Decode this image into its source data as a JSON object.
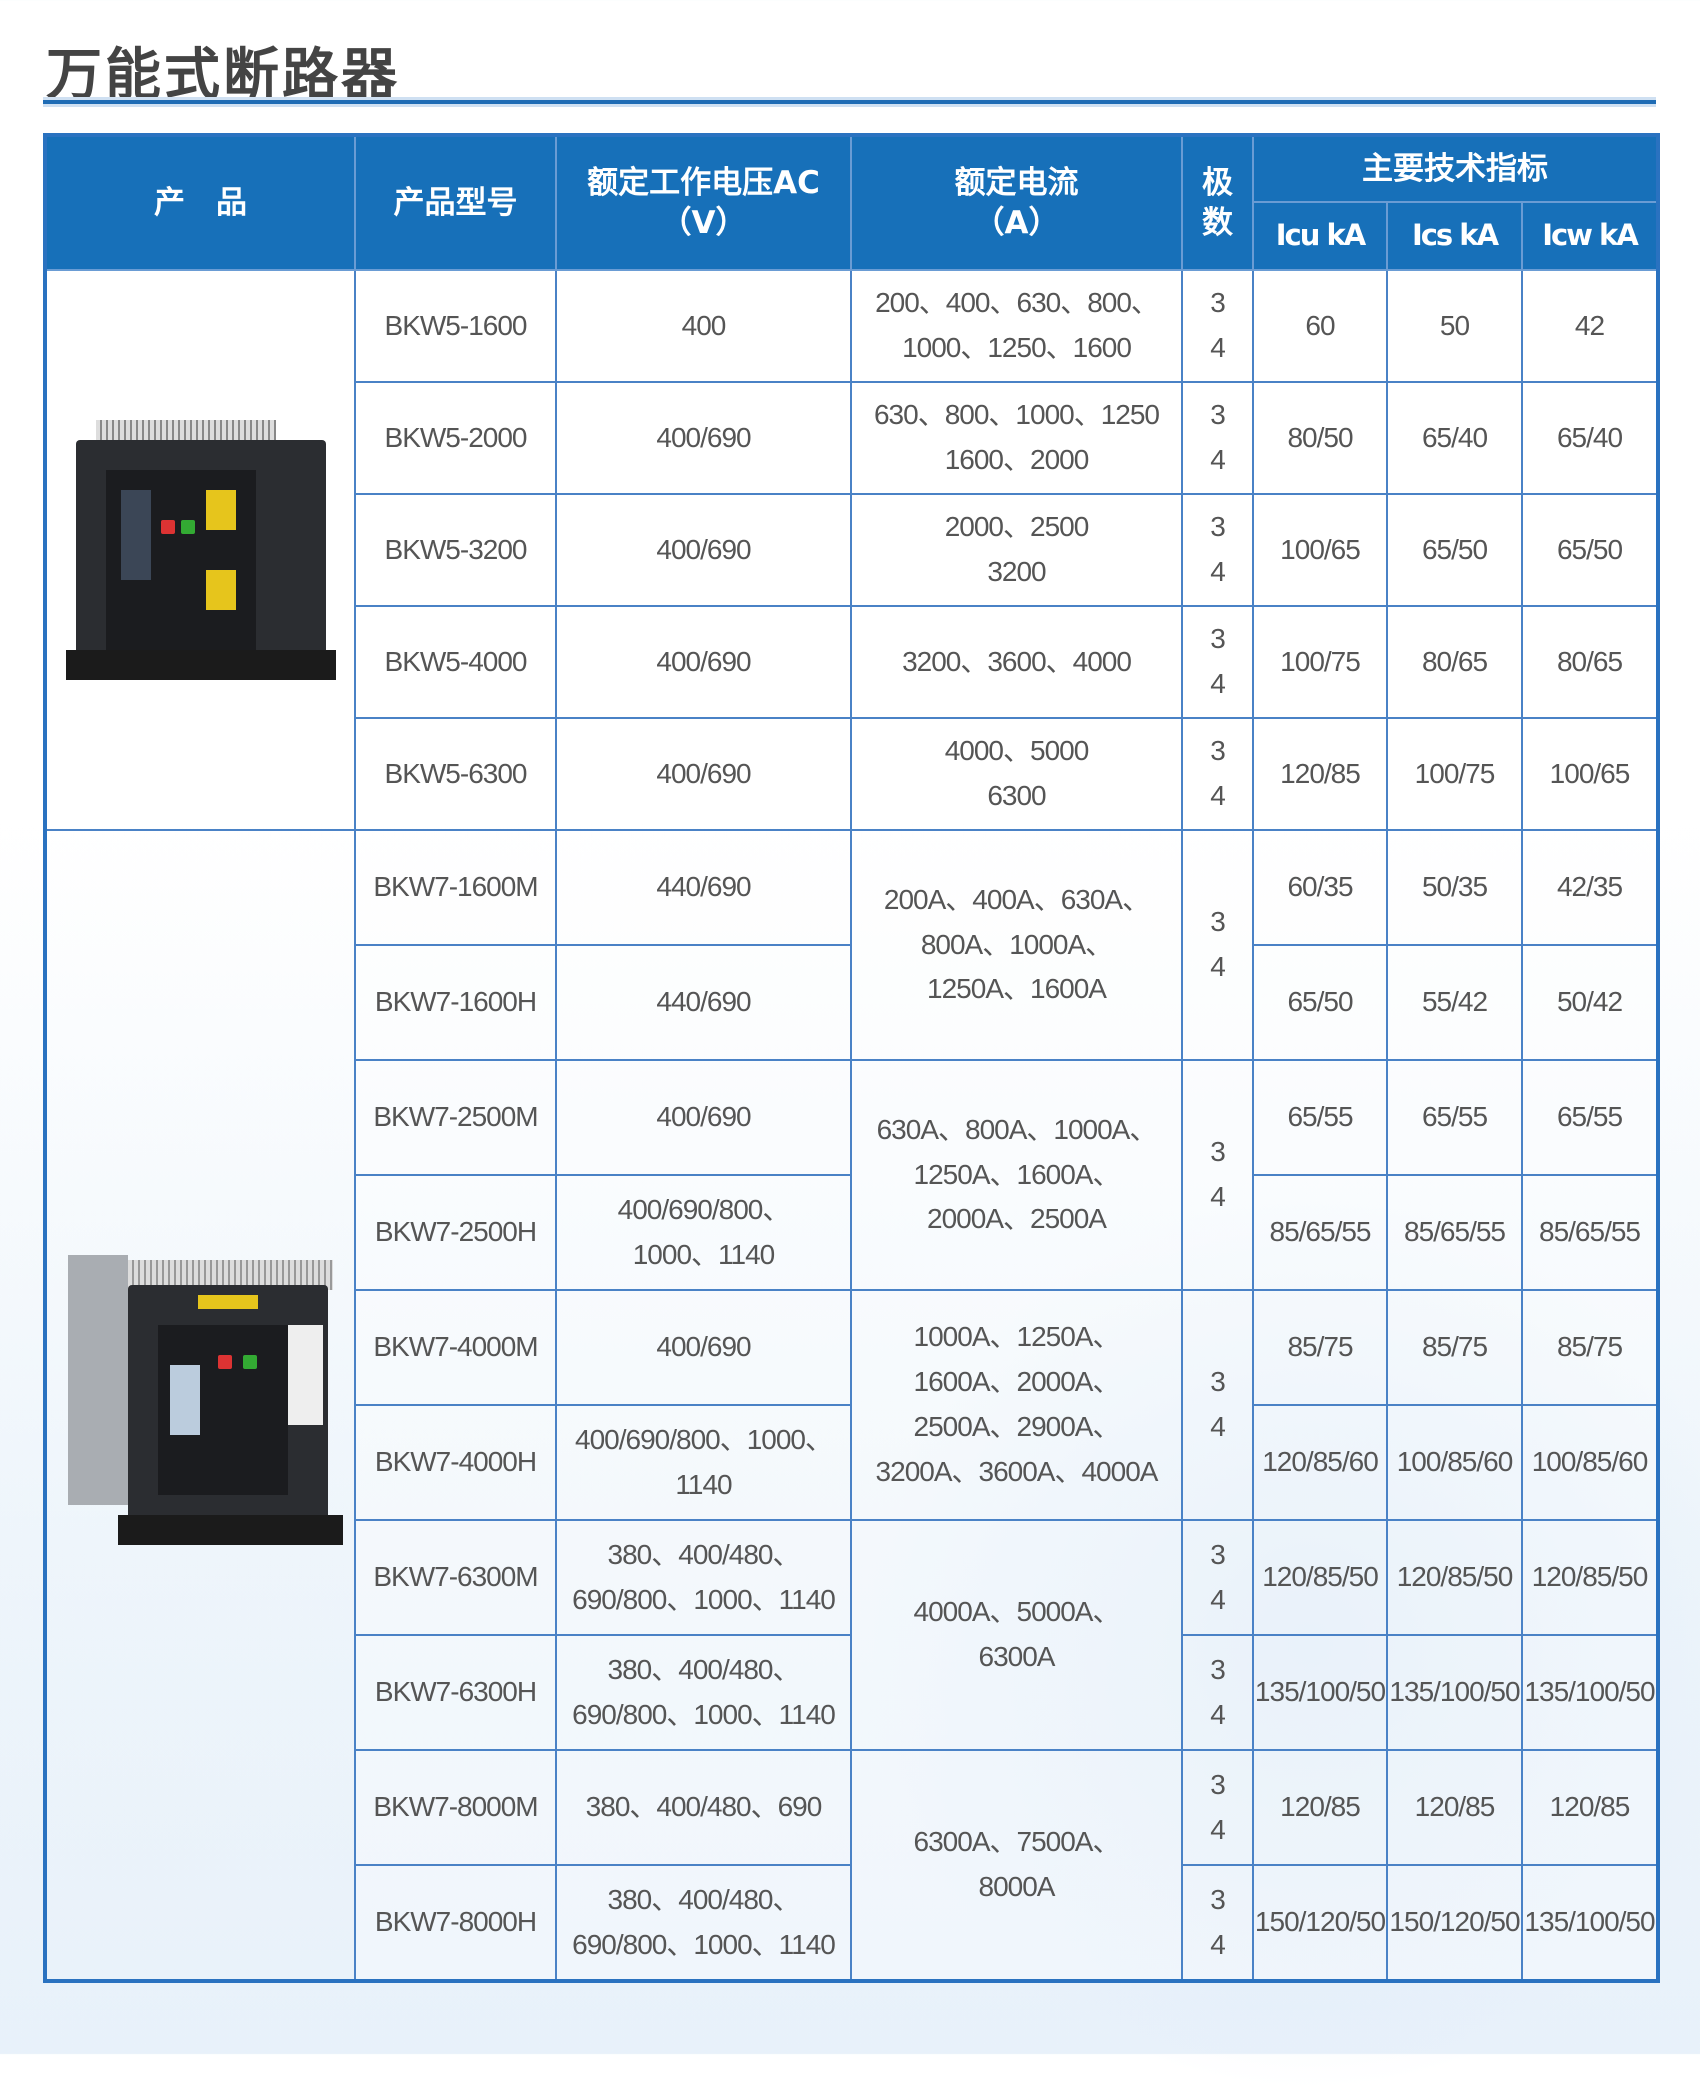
{
  "title": "万能式断路器",
  "colors": {
    "header_bg": "#1770b9",
    "border": "#4a82c6",
    "text": "#555555"
  },
  "header": {
    "product": "产　品",
    "model": "产品型号",
    "voltage": "额定工作电压AC\n（V）",
    "current": "额定电流\n（A）",
    "poles": "极\n数",
    "specs": "主要技术指标",
    "icu": "Icu kA",
    "ics": "Ics kA",
    "icw": "Icw kA"
  },
  "products": [
    {
      "name": "BKW5 breaker photo",
      "icon": "breaker-image"
    },
    {
      "name": "BKW7 breaker photo",
      "icon": "breaker-image"
    }
  ],
  "rows": [
    {
      "model": "BKW5-1600",
      "voltage": "400",
      "current": "200、400、630、800、\n1000、1250、1600",
      "poles": "3\n4",
      "icu": "60",
      "ics": "50",
      "icw": "42"
    },
    {
      "model": "BKW5-2000",
      "voltage": "400/690",
      "current": "630、800、1000、1250\n1600、2000",
      "poles": "3\n4",
      "icu": "80/50",
      "ics": "65/40",
      "icw": "65/40"
    },
    {
      "model": "BKW5-3200",
      "voltage": "400/690",
      "current": "2000、2500\n3200",
      "poles": "3\n4",
      "icu": "100/65",
      "ics": "65/50",
      "icw": "65/50"
    },
    {
      "model": "BKW5-4000",
      "voltage": "400/690",
      "current": "3200、3600、4000",
      "poles": "3\n4",
      "icu": "100/75",
      "ics": "80/65",
      "icw": "80/65"
    },
    {
      "model": "BKW5-6300",
      "voltage": "400/690",
      "current": "4000、5000\n6300",
      "poles": "3\n4",
      "icu": "120/85",
      "ics": "100/75",
      "icw": "100/65"
    },
    {
      "model": "BKW7-1600M",
      "voltage": "440/690",
      "current": "200A、400A、630A、\n800A、1000A、\n1250A、1600A",
      "poles": "3\n4",
      "icu": "60/35",
      "ics": "50/35",
      "icw": "42/35"
    },
    {
      "model": "BKW7-1600H",
      "voltage": "440/690",
      "icu": "65/50",
      "ics": "55/42",
      "icw": "50/42"
    },
    {
      "model": "BKW7-2500M",
      "voltage": "400/690",
      "current": "630A、800A、1000A、\n1250A、1600A、\n2000A、2500A",
      "poles": "3\n4",
      "icu": "65/55",
      "ics": "65/55",
      "icw": "65/55"
    },
    {
      "model": "BKW7-2500H",
      "voltage": "400/690/800、\n1000、1140",
      "icu": "85/65/55",
      "ics": "85/65/55",
      "icw": "85/65/55"
    },
    {
      "model": "BKW7-4000M",
      "voltage": "400/690",
      "current": "1000A、1250A、\n1600A、2000A、\n2500A、2900A、\n3200A、3600A、4000A",
      "poles": "3\n4",
      "icu": "85/75",
      "ics": "85/75",
      "icw": "85/75"
    },
    {
      "model": "BKW7-4000H",
      "voltage": "400/690/800、1000、\n1140",
      "icu": "120/85/60",
      "ics": "100/85/60",
      "icw": "100/85/60"
    },
    {
      "model": "BKW7-6300M",
      "voltage": "380、400/480、\n690/800、1000、1140",
      "current": "4000A、5000A、\n6300A",
      "poles": "3\n4",
      "icu": "120/85/50",
      "ics": "120/85/50",
      "icw": "120/85/50"
    },
    {
      "model": "BKW7-6300H",
      "voltage": "380、400/480、\n690/800、1000、1140",
      "poles": "3\n4",
      "icu": "135/100/50",
      "ics": "135/100/50",
      "icw": "135/100/50"
    },
    {
      "model": "BKW7-8000M",
      "voltage": "380、400/480、690",
      "current": "6300A、7500A、\n8000A",
      "poles": "3\n4",
      "icu": "120/85",
      "ics": "120/85",
      "icw": "120/85"
    },
    {
      "model": "BKW7-8000H",
      "voltage": "380、400/480、\n690/800、1000、1140",
      "poles": "3\n4",
      "icu": "150/120/50",
      "ics": "150/120/50",
      "icw": "135/100/50"
    }
  ]
}
